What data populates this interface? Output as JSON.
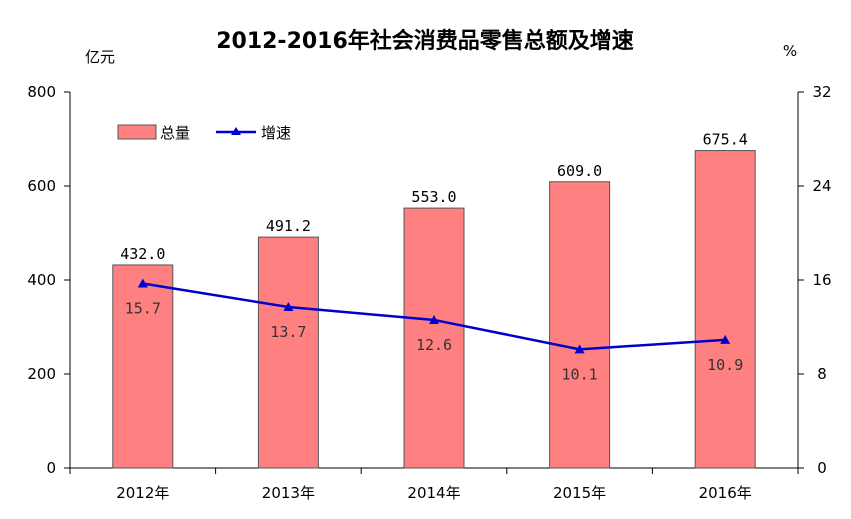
{
  "chart_data": {
    "type": "bar",
    "title": "2012-2016年社会消费品零售总额及增速",
    "left_unit": "亿元",
    "right_unit": "%",
    "categories": [
      "2012年",
      "2013年",
      "2014年",
      "2015年",
      "2016年"
    ],
    "series": [
      {
        "name": "总量",
        "kind": "bar",
        "axis": "left",
        "values": [
          432.0,
          491.2,
          553.0,
          609.0,
          675.4
        ],
        "labels": [
          "432.0",
          "491.2",
          "553.0",
          "609.0",
          "675.4"
        ]
      },
      {
        "name": "增速",
        "kind": "line",
        "axis": "right",
        "values": [
          15.7,
          13.7,
          12.6,
          10.1,
          10.9
        ],
        "labels": [
          "15.7",
          "13.7",
          "12.6",
          "10.1",
          "10.9"
        ]
      }
    ],
    "left_axis": {
      "min": 0,
      "max": 800,
      "ticks": [
        "0",
        "200",
        "400",
        "600",
        "800"
      ]
    },
    "right_axis": {
      "min": 0,
      "max": 32,
      "ticks": [
        "0",
        "8",
        "16",
        "24",
        "32"
      ]
    },
    "grid": false,
    "legend_position": "top-left",
    "colors": {
      "bar_fill": "#ff8080",
      "bar_stroke": "#555555",
      "line": "#0000cc"
    }
  }
}
